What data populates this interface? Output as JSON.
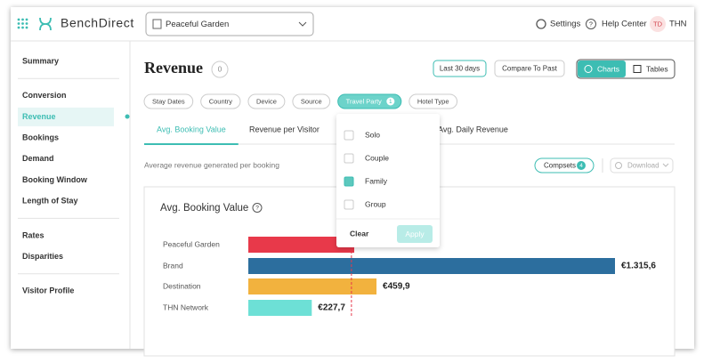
{
  "header": {
    "app_name": "BenchDirect",
    "property": "Peaceful Garden",
    "links": [
      "Settings",
      "Help Center"
    ],
    "avatar": "TD",
    "user": "THN"
  },
  "sidebar": {
    "groups": [
      [
        {
          "label": "Summary"
        }
      ],
      [
        {
          "label": "Conversion"
        },
        {
          "label": "Revenue",
          "active": true
        },
        {
          "label": "Bookings"
        },
        {
          "label": "Demand"
        },
        {
          "label": "Booking Window"
        },
        {
          "label": "Length of Stay"
        }
      ],
      [
        {
          "label": "Rates"
        },
        {
          "label": "Disparities"
        }
      ],
      [
        {
          "label": "Visitor Profile"
        }
      ]
    ]
  },
  "page": {
    "title": "Revenue",
    "badge": "0",
    "date_range": "Last 30 days",
    "compare": "Compare To Past",
    "views": [
      {
        "label": "Charts",
        "active": true
      },
      {
        "label": "Tables"
      }
    ]
  },
  "filters": [
    {
      "label": "Stay Dates"
    },
    {
      "label": "Country"
    },
    {
      "label": "Device"
    },
    {
      "label": "Source"
    },
    {
      "label": "Travel Party",
      "count": 1,
      "active": true
    },
    {
      "label": "Hotel Type"
    }
  ],
  "tabs": [
    {
      "label": "Avg. Booking Value",
      "active": true
    },
    {
      "label": "Revenue per Visitor"
    },
    {
      "label": "Avg. Daily Revenue"
    }
  ],
  "description": "Average revenue generated per booking",
  "compsets": {
    "label": "Compsets",
    "count": 4
  },
  "download": "Download",
  "chart_data": {
    "type": "bar",
    "orientation": "horizontal",
    "title": "Avg. Booking Value",
    "categories": [
      "Peaceful Garden",
      "Brand",
      "Destination",
      "THN Network"
    ],
    "values": [
      380,
      1315.6,
      459.9,
      227.7
    ],
    "value_labels": [
      null,
      "€1.315,6",
      "€459,9",
      "€227,7"
    ],
    "colors": [
      "#e8394a",
      "#2c6e9e",
      "#f2b23e",
      "#6de0d6"
    ],
    "reference_line": 370,
    "reference_color": "#e8394a"
  },
  "dropdown": {
    "options": [
      {
        "label": "Solo"
      },
      {
        "label": "Couple"
      },
      {
        "label": "Family",
        "checked": true
      },
      {
        "label": "Group"
      }
    ],
    "clear": "Clear",
    "apply": "Apply"
  }
}
